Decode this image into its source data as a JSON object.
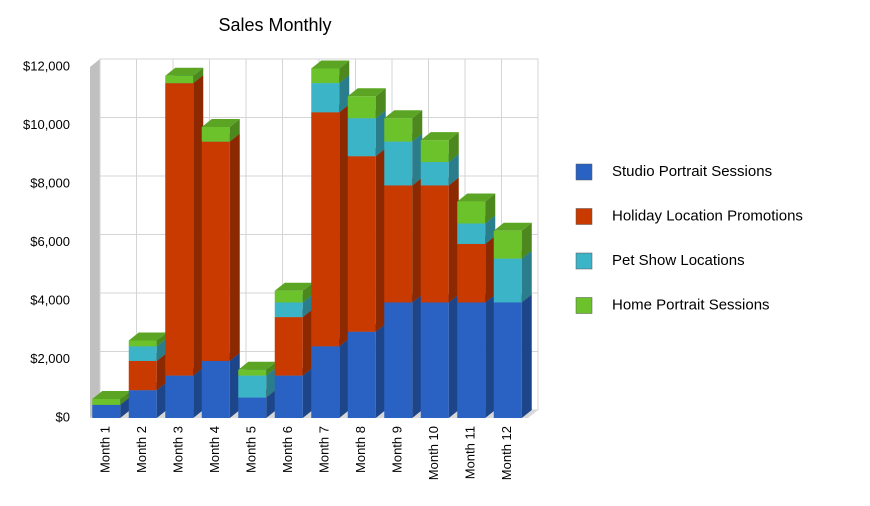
{
  "chart_data": {
    "type": "bar",
    "stacked": true,
    "title": "Sales Monthly",
    "categories": [
      "Month 1",
      "Month 2",
      "Month 3",
      "Month 4",
      "Month 5",
      "Month 6",
      "Month 7",
      "Month 8",
      "Month 9",
      "Month 10",
      "Month 11",
      "Month 12"
    ],
    "series": [
      {
        "name": "Studio Portrait Sessions",
        "color": "#2a62c4",
        "values": [
          450,
          950,
          1450,
          1950,
          700,
          1450,
          2450,
          2950,
          3950,
          3950,
          3950,
          3950
        ]
      },
      {
        "name": "Holiday Location Promotions",
        "color": "#c83a00",
        "values": [
          0,
          1000,
          10000,
          7500,
          0,
          2000,
          8000,
          6000,
          4000,
          4000,
          2000,
          0
        ]
      },
      {
        "name": "Pet Show Locations",
        "color": "#3cb4c8",
        "values": [
          0,
          500,
          0,
          0,
          750,
          500,
          1000,
          1300,
          1500,
          800,
          700,
          1500
        ]
      },
      {
        "name": "Home Portrait Sessions",
        "color": "#6cc22a",
        "values": [
          200,
          200,
          250,
          500,
          200,
          400,
          500,
          750,
          800,
          750,
          750,
          950
        ]
      }
    ],
    "ylim": [
      0,
      12000
    ],
    "yticks": [
      {
        "value": 0,
        "label": "$0"
      },
      {
        "value": 2000,
        "label": "$2,000"
      },
      {
        "value": 4000,
        "label": "$4,000"
      },
      {
        "value": 6000,
        "label": "$6,000"
      },
      {
        "value": 8000,
        "label": "$8,000"
      },
      {
        "value": 10000,
        "label": "$10,000"
      },
      {
        "value": 12000,
        "label": "$12,000"
      }
    ],
    "grid": true,
    "legend": "right"
  }
}
